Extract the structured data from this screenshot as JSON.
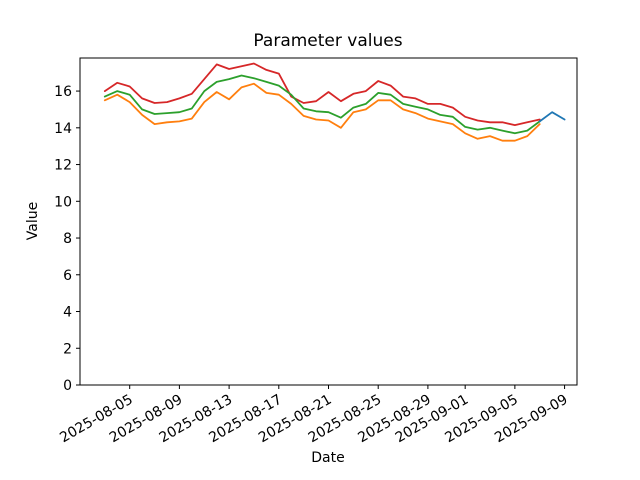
{
  "chart_data": {
    "type": "line",
    "title": "Parameter values",
    "xlabel": "Date",
    "ylabel": "Value",
    "x": [
      "2025-08-03",
      "2025-08-04",
      "2025-08-05",
      "2025-08-06",
      "2025-08-07",
      "2025-08-08",
      "2025-08-09",
      "2025-08-10",
      "2025-08-11",
      "2025-08-12",
      "2025-08-13",
      "2025-08-14",
      "2025-08-15",
      "2025-08-16",
      "2025-08-17",
      "2025-08-18",
      "2025-08-19",
      "2025-08-20",
      "2025-08-21",
      "2025-08-22",
      "2025-08-23",
      "2025-08-24",
      "2025-08-25",
      "2025-08-26",
      "2025-08-27",
      "2025-08-28",
      "2025-08-29",
      "2025-08-30",
      "2025-08-31",
      "2025-09-01",
      "2025-09-02",
      "2025-09-03",
      "2025-09-04",
      "2025-09-05",
      "2025-09-06",
      "2025-09-07"
    ],
    "series": [
      {
        "name": "red-line",
        "color": "#d62728",
        "values": [
          16.0,
          16.45,
          16.25,
          15.6,
          15.35,
          15.4,
          15.6,
          15.85,
          16.65,
          17.45,
          17.2,
          17.35,
          17.5,
          17.15,
          16.95,
          15.7,
          15.35,
          15.45,
          15.95,
          15.45,
          15.85,
          16.0,
          16.55,
          16.3,
          15.7,
          15.6,
          15.3,
          15.3,
          15.1,
          14.6,
          14.4,
          14.3,
          14.3,
          14.15,
          14.3,
          14.45
        ]
      },
      {
        "name": "green-line",
        "color": "#2ca02c",
        "values": [
          15.7,
          16.0,
          15.8,
          15.0,
          14.75,
          14.8,
          14.85,
          15.05,
          16.0,
          16.5,
          16.65,
          16.85,
          16.7,
          16.5,
          16.3,
          15.8,
          15.05,
          14.9,
          14.85,
          14.55,
          15.1,
          15.3,
          15.9,
          15.8,
          15.3,
          15.15,
          15.0,
          14.7,
          14.6,
          14.05,
          13.9,
          14.0,
          13.85,
          13.7,
          13.85,
          14.35
        ]
      },
      {
        "name": "orange-line",
        "color": "#ff7f0e",
        "values": [
          15.5,
          15.8,
          15.4,
          14.7,
          14.2,
          14.3,
          14.35,
          14.5,
          15.4,
          15.95,
          15.55,
          16.2,
          16.4,
          15.9,
          15.8,
          15.3,
          14.65,
          14.45,
          14.4,
          14.0,
          14.85,
          15.0,
          15.5,
          15.5,
          15.0,
          14.8,
          14.5,
          14.35,
          14.2,
          13.7,
          13.4,
          13.55,
          13.3,
          13.3,
          13.55,
          14.2
        ]
      },
      {
        "name": "blue-line",
        "color": "#1f77b4",
        "x": [
          "2025-09-07",
          "2025-09-08",
          "2025-09-09"
        ],
        "values": [
          14.35,
          14.85,
          14.45
        ]
      }
    ],
    "xlim": [
      "2025-08-01",
      "2025-09-10"
    ],
    "ylim": [
      0,
      17.8
    ],
    "y_ticks": [
      0,
      2,
      4,
      6,
      8,
      10,
      12,
      14,
      16
    ],
    "x_ticks": [
      "2025-08-05",
      "2025-08-09",
      "2025-08-13",
      "2025-08-17",
      "2025-08-21",
      "2025-08-25",
      "2025-08-29",
      "2025-09-01",
      "2025-09-05",
      "2025-09-09"
    ],
    "x_tick_rotation": 30,
    "grid": false,
    "legend": false
  }
}
